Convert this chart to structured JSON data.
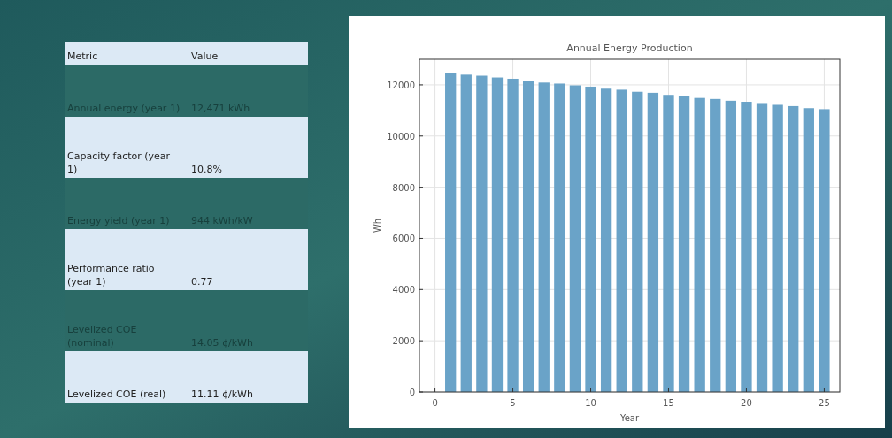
{
  "chart_data": [
    {
      "type": "other",
      "categories": [
        "Metric",
        "Value"
      ],
      "cell_labels": [
        [
          "Annual energy (year 1)",
          "12,471 kWh"
        ],
        [
          "Capacity factor (year 1)",
          "10.8%"
        ],
        [
          "Energy yield (year 1)",
          "944 kWh/kW"
        ],
        [
          "Performance ratio (year 1)",
          "0.77"
        ],
        [
          "Levelized COE (nominal)",
          "14.05 ¢/kWh"
        ],
        [
          "Levelized COE (real)",
          "11.11 ¢/kWh"
        ]
      ]
    },
    {
      "type": "bar",
      "title": "Annual Energy Production",
      "xlabel": "Year",
      "ylabel": "Wh",
      "color": "#6aa3c8",
      "x": [
        1,
        2,
        3,
        4,
        5,
        6,
        7,
        8,
        9,
        10,
        11,
        12,
        13,
        14,
        15,
        16,
        17,
        18,
        19,
        20,
        21,
        22,
        23,
        24,
        25
      ],
      "values": [
        12471,
        12400,
        12360,
        12290,
        12240,
        12160,
        12090,
        12050,
        11980,
        11930,
        11850,
        11810,
        11730,
        11690,
        11610,
        11580,
        11490,
        11450,
        11380,
        11340,
        11290,
        11220,
        11170,
        11090,
        11050
      ],
      "xlim": [
        -1,
        26
      ],
      "xticks": [
        0,
        5,
        10,
        15,
        20,
        25
      ],
      "ylim": [
        0,
        13000
      ],
      "yticks": [
        0,
        2000,
        4000,
        6000,
        8000,
        10000,
        12000
      ],
      "grid": true
    }
  ]
}
